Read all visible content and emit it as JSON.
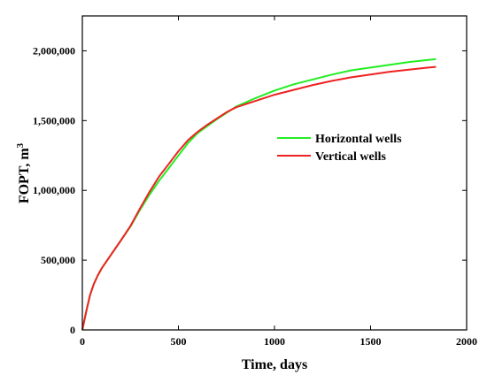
{
  "chart_data": {
    "type": "line",
    "xlabel": "Time, days",
    "ylabel_main": "FOPT, m",
    "ylabel_sup": "3",
    "xlim": [
      0,
      2000
    ],
    "ylim": [
      0,
      2250000
    ],
    "x_ticks": [
      0,
      500,
      1000,
      1500,
      2000
    ],
    "x_tick_labels": [
      "0",
      "500",
      "1000",
      "1500",
      "2000"
    ],
    "y_ticks": [
      0,
      500000,
      1000000,
      1500000,
      2000000
    ],
    "y_tick_labels": [
      "0",
      "500,000",
      "1,000,000",
      "1,500,000",
      "2,000,000"
    ],
    "grid": false,
    "legend_position": "center-right",
    "series": [
      {
        "name": "Horizontal wells",
        "color": "#22ee22",
        "x": [
          0,
          20,
          40,
          60,
          80,
          100,
          150,
          200,
          250,
          300,
          350,
          400,
          450,
          500,
          550,
          600,
          650,
          700,
          750,
          800,
          900,
          1000,
          1100,
          1200,
          1300,
          1400,
          1500,
          1600,
          1700,
          1800,
          1840
        ],
        "y": [
          0,
          130000,
          250000,
          330000,
          390000,
          440000,
          540000,
          640000,
          740000,
          860000,
          970000,
          1070000,
          1160000,
          1250000,
          1340000,
          1410000,
          1460000,
          1510000,
          1555000,
          1600000,
          1660000,
          1715000,
          1760000,
          1795000,
          1830000,
          1860000,
          1880000,
          1900000,
          1920000,
          1935000,
          1940000
        ]
      },
      {
        "name": "Vertical wells",
        "color": "#ee2222",
        "x": [
          0,
          20,
          40,
          60,
          80,
          100,
          150,
          200,
          250,
          300,
          350,
          400,
          450,
          500,
          550,
          600,
          650,
          700,
          750,
          800,
          900,
          1000,
          1100,
          1200,
          1300,
          1400,
          1500,
          1600,
          1700,
          1800,
          1840
        ],
        "y": [
          0,
          130000,
          250000,
          330000,
          390000,
          440000,
          540000,
          640000,
          745000,
          870000,
          990000,
          1100000,
          1190000,
          1280000,
          1360000,
          1420000,
          1470000,
          1515000,
          1560000,
          1595000,
          1640000,
          1685000,
          1720000,
          1755000,
          1785000,
          1810000,
          1830000,
          1850000,
          1865000,
          1880000,
          1885000
        ]
      }
    ]
  }
}
